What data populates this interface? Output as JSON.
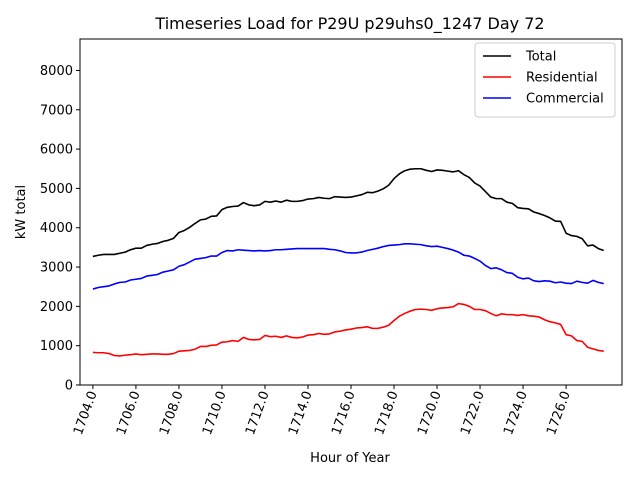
{
  "chart_data": {
    "type": "line",
    "title": "Timeseries Load for P29U p29uhs0_1247  Day 72",
    "xlabel": "Hour of Year",
    "ylabel": "kW total",
    "xlim": [
      1703.4,
      1728.6
    ],
    "ylim": [
      0,
      8800
    ],
    "xticks": [
      1704,
      1706,
      1708,
      1710,
      1712,
      1714,
      1716,
      1718,
      1720,
      1722,
      1724,
      1726
    ],
    "xtick_labels": [
      "1704.0",
      "1706.0",
      "1708.0",
      "1710.0",
      "1712.0",
      "1714.0",
      "1716.0",
      "1718.0",
      "1720.0",
      "1722.0",
      "1724.0",
      "1726.0"
    ],
    "yticks": [
      0,
      1000,
      2000,
      3000,
      4000,
      5000,
      6000,
      7000,
      8000
    ],
    "ytick_labels": [
      "0",
      "1000",
      "2000",
      "3000",
      "4000",
      "5000",
      "6000",
      "7000",
      "8000"
    ],
    "legend_position": "top-right",
    "x": [
      1704.0,
      1704.25,
      1704.5,
      1704.75,
      1705.0,
      1705.25,
      1705.5,
      1705.75,
      1706.0,
      1706.25,
      1706.5,
      1706.75,
      1707.0,
      1707.25,
      1707.5,
      1707.75,
      1708.0,
      1708.25,
      1708.5,
      1708.75,
      1709.0,
      1709.25,
      1709.5,
      1709.75,
      1710.0,
      1710.25,
      1710.5,
      1710.75,
      1711.0,
      1711.25,
      1711.5,
      1711.75,
      1712.0,
      1712.25,
      1712.5,
      1712.75,
      1713.0,
      1713.25,
      1713.5,
      1713.75,
      1714.0,
      1714.25,
      1714.5,
      1714.75,
      1715.0,
      1715.25,
      1715.5,
      1715.75,
      1716.0,
      1716.25,
      1716.5,
      1716.75,
      1717.0,
      1717.25,
      1717.5,
      1717.75,
      1718.0,
      1718.25,
      1718.5,
      1718.75,
      1719.0,
      1719.25,
      1719.5,
      1719.75,
      1720.0,
      1720.25,
      1720.5,
      1720.75,
      1721.0,
      1721.25,
      1721.5,
      1721.75,
      1722.0,
      1722.25,
      1722.5,
      1722.75,
      1723.0,
      1723.25,
      1723.5,
      1723.75,
      1724.0,
      1724.25,
      1724.5,
      1724.75,
      1725.0,
      1725.25,
      1725.5,
      1725.75,
      1726.0,
      1726.25,
      1726.5,
      1726.75,
      1727.0,
      1727.25,
      1727.5,
      1727.75
    ],
    "series": [
      {
        "name": "Total",
        "color": "#000000",
        "values": [
          3270,
          3300,
          3320,
          3320,
          3320,
          3350,
          3380,
          3440,
          3480,
          3480,
          3550,
          3580,
          3600,
          3650,
          3680,
          3730,
          3880,
          3930,
          4010,
          4110,
          4200,
          4220,
          4290,
          4300,
          4460,
          4520,
          4540,
          4550,
          4640,
          4580,
          4560,
          4580,
          4670,
          4650,
          4680,
          4650,
          4700,
          4670,
          4670,
          4690,
          4730,
          4740,
          4770,
          4750,
          4740,
          4790,
          4780,
          4770,
          4780,
          4810,
          4840,
          4900,
          4890,
          4930,
          4990,
          5080,
          5250,
          5370,
          5450,
          5490,
          5500,
          5500,
          5460,
          5430,
          5470,
          5460,
          5440,
          5420,
          5450,
          5350,
          5280,
          5140,
          5060,
          4920,
          4780,
          4740,
          4740,
          4650,
          4620,
          4510,
          4490,
          4480,
          4400,
          4360,
          4310,
          4250,
          4170,
          4160,
          3860,
          3800,
          3780,
          3720,
          3540,
          3560,
          3470,
          3420
        ]
      },
      {
        "name": "Residential",
        "color": "#ff0000",
        "values": [
          830,
          820,
          820,
          800,
          750,
          740,
          760,
          770,
          790,
          770,
          780,
          790,
          790,
          780,
          780,
          800,
          860,
          870,
          880,
          910,
          980,
          980,
          1010,
          1020,
          1090,
          1100,
          1130,
          1110,
          1210,
          1160,
          1150,
          1160,
          1260,
          1230,
          1240,
          1210,
          1250,
          1210,
          1200,
          1220,
          1270,
          1280,
          1310,
          1290,
          1300,
          1350,
          1370,
          1400,
          1420,
          1450,
          1460,
          1480,
          1440,
          1440,
          1470,
          1520,
          1640,
          1750,
          1820,
          1880,
          1920,
          1930,
          1920,
          1900,
          1940,
          1960,
          1970,
          1990,
          2070,
          2050,
          2000,
          1920,
          1920,
          1890,
          1820,
          1760,
          1810,
          1790,
          1790,
          1770,
          1790,
          1760,
          1750,
          1730,
          1660,
          1610,
          1580,
          1540,
          1280,
          1250,
          1130,
          1110,
          960,
          920,
          880,
          860
        ]
      },
      {
        "name": "Commercial",
        "color": "#0000ff",
        "values": [
          2440,
          2480,
          2500,
          2520,
          2570,
          2610,
          2620,
          2670,
          2690,
          2710,
          2770,
          2790,
          2810,
          2870,
          2900,
          2930,
          3020,
          3060,
          3130,
          3200,
          3220,
          3240,
          3280,
          3280,
          3370,
          3420,
          3410,
          3440,
          3430,
          3420,
          3410,
          3420,
          3410,
          3420,
          3440,
          3440,
          3450,
          3460,
          3470,
          3470,
          3470,
          3470,
          3470,
          3470,
          3450,
          3440,
          3410,
          3370,
          3360,
          3360,
          3380,
          3420,
          3450,
          3480,
          3520,
          3550,
          3560,
          3570,
          3590,
          3590,
          3580,
          3570,
          3540,
          3520,
          3530,
          3500,
          3470,
          3430,
          3380,
          3300,
          3280,
          3220,
          3150,
          3040,
          2960,
          2980,
          2930,
          2860,
          2840,
          2740,
          2700,
          2720,
          2650,
          2630,
          2650,
          2640,
          2600,
          2620,
          2590,
          2580,
          2640,
          2610,
          2590,
          2660,
          2610,
          2580
        ]
      }
    ]
  }
}
